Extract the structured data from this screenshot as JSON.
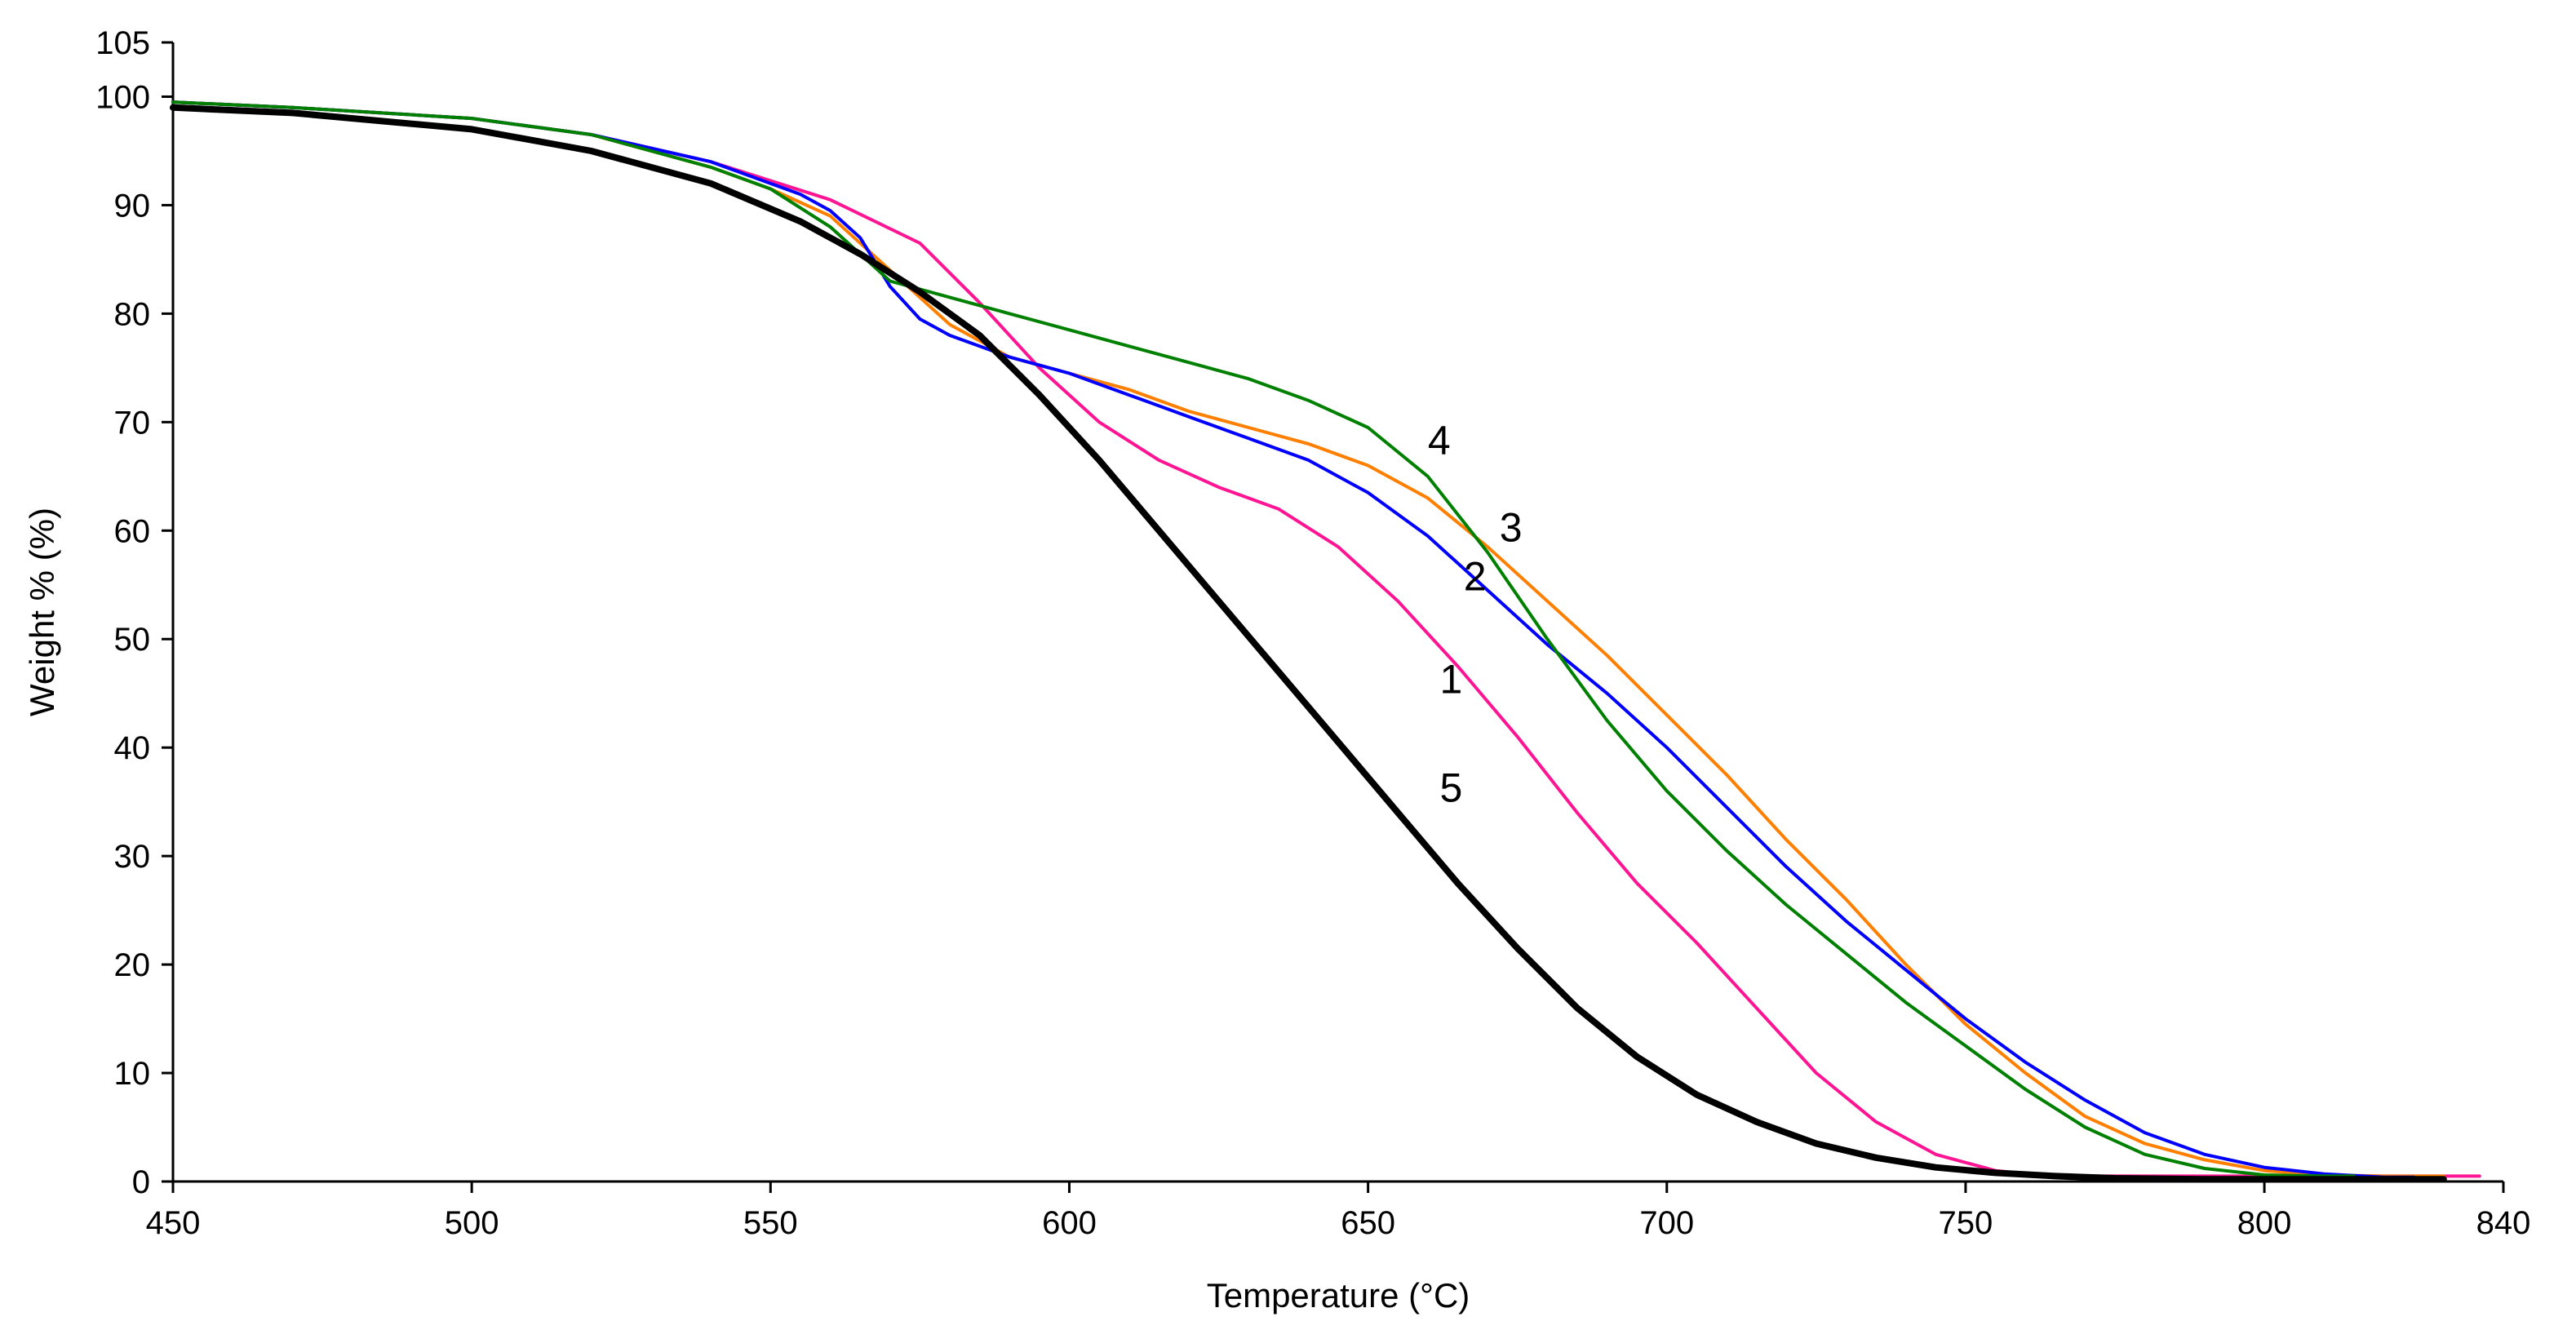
{
  "chart_data": {
    "type": "line",
    "title": "",
    "xlabel": "Temperature (°C)",
    "ylabel": "Weight % (%)",
    "xlim": [
      450,
      840
    ],
    "ylim": [
      0,
      105
    ],
    "xticks": [
      450,
      500,
      550,
      600,
      650,
      700,
      750,
      800,
      840
    ],
    "yticks": [
      0,
      10,
      20,
      30,
      40,
      50,
      60,
      70,
      80,
      90,
      100,
      105
    ],
    "grid": false,
    "legend": "none",
    "series": [
      {
        "name": "1",
        "label": "1",
        "color": "#ff1493",
        "label_at": [
          662,
          45
        ],
        "x": [
          450,
          470,
          500,
          520,
          540,
          560,
          575,
          585,
          595,
          605,
          615,
          625,
          635,
          645,
          655,
          665,
          675,
          685,
          695,
          705,
          715,
          725,
          735,
          745,
          755,
          762,
          770,
          780,
          800,
          820,
          836
        ],
        "y": [
          99.5,
          99,
          98,
          96.5,
          94,
          90.5,
          86.5,
          81,
          75,
          70,
          66.5,
          64,
          62,
          58.5,
          53.5,
          47.5,
          41,
          34,
          27.5,
          22,
          16,
          10,
          5.5,
          2.5,
          1,
          0.6,
          0.5,
          0.5,
          0.5,
          0.5,
          0.5
        ]
      },
      {
        "name": "2",
        "label": "2",
        "color": "#ff7f00",
        "label_at": [
          666,
          54.5
        ],
        "x": [
          450,
          470,
          500,
          520,
          540,
          550,
          560,
          570,
          580,
          590,
          600,
          610,
          620,
          630,
          640,
          650,
          660,
          670,
          680,
          690,
          700,
          710,
          720,
          730,
          740,
          750,
          760,
          770,
          780,
          790,
          800,
          810,
          820,
          830
        ],
        "y": [
          99.5,
          99,
          98,
          96.5,
          93.5,
          91.5,
          89,
          84,
          79,
          76,
          74.5,
          73,
          71,
          69.5,
          68,
          66,
          63,
          58.5,
          53.5,
          48.5,
          43,
          37.5,
          31.5,
          26,
          20,
          14.5,
          10,
          6,
          3.5,
          2,
          1,
          0.6,
          0.5,
          0.5
        ]
      },
      {
        "name": "3",
        "label": "3",
        "color": "#0000ff",
        "label_at": [
          672,
          59
        ],
        "x": [
          450,
          470,
          500,
          520,
          540,
          555,
          560,
          565,
          570,
          575,
          580,
          585,
          590,
          600,
          610,
          620,
          630,
          640,
          650,
          660,
          670,
          680,
          690,
          700,
          710,
          720,
          730,
          740,
          750,
          760,
          770,
          780,
          790,
          800,
          810,
          820,
          825
        ],
        "y": [
          99.5,
          99,
          98,
          96.5,
          94,
          91,
          89.5,
          87,
          82.5,
          79.5,
          78,
          77,
          76,
          74.5,
          72.5,
          70.5,
          68.5,
          66.5,
          63.5,
          59.5,
          54.5,
          49.5,
          45,
          40,
          34.5,
          29,
          24,
          19.5,
          15,
          11,
          7.5,
          4.5,
          2.5,
          1.3,
          0.7,
          0.4,
          0.4
        ]
      },
      {
        "name": "4",
        "label": "4",
        "color": "#008000",
        "label_at": [
          660,
          67
        ],
        "x": [
          450,
          470,
          500,
          520,
          540,
          550,
          560,
          570,
          580,
          590,
          600,
          610,
          620,
          630,
          640,
          650,
          660,
          670,
          680,
          690,
          700,
          710,
          720,
          730,
          740,
          750,
          760,
          770,
          780,
          790,
          800,
          810,
          815
        ],
        "y": [
          99.5,
          99,
          98,
          96.5,
          93.5,
          91.5,
          88,
          83,
          81.5,
          80,
          78.5,
          77,
          75.5,
          74,
          72,
          69.5,
          65,
          58,
          50,
          42.5,
          36,
          30.5,
          25.5,
          21,
          16.5,
          12.5,
          8.5,
          5,
          2.5,
          1.2,
          0.6,
          0.5,
          0.5
        ]
      },
      {
        "name": "5",
        "label": "5",
        "color": "#000000",
        "label_at": [
          662,
          35
        ],
        "x": [
          450,
          470,
          500,
          520,
          540,
          555,
          565,
          575,
          585,
          595,
          605,
          615,
          625,
          635,
          645,
          655,
          665,
          675,
          685,
          695,
          705,
          715,
          725,
          735,
          745,
          755,
          765,
          775,
          790,
          810,
          830
        ],
        "y": [
          99,
          98.5,
          97,
          95,
          92,
          88.5,
          85.5,
          82,
          78,
          72.5,
          66.5,
          60,
          53.5,
          47,
          40.5,
          34,
          27.5,
          21.5,
          16,
          11.5,
          8,
          5.5,
          3.5,
          2.2,
          1.3,
          0.8,
          0.5,
          0.3,
          0.2,
          0.2,
          0.2
        ]
      }
    ]
  }
}
